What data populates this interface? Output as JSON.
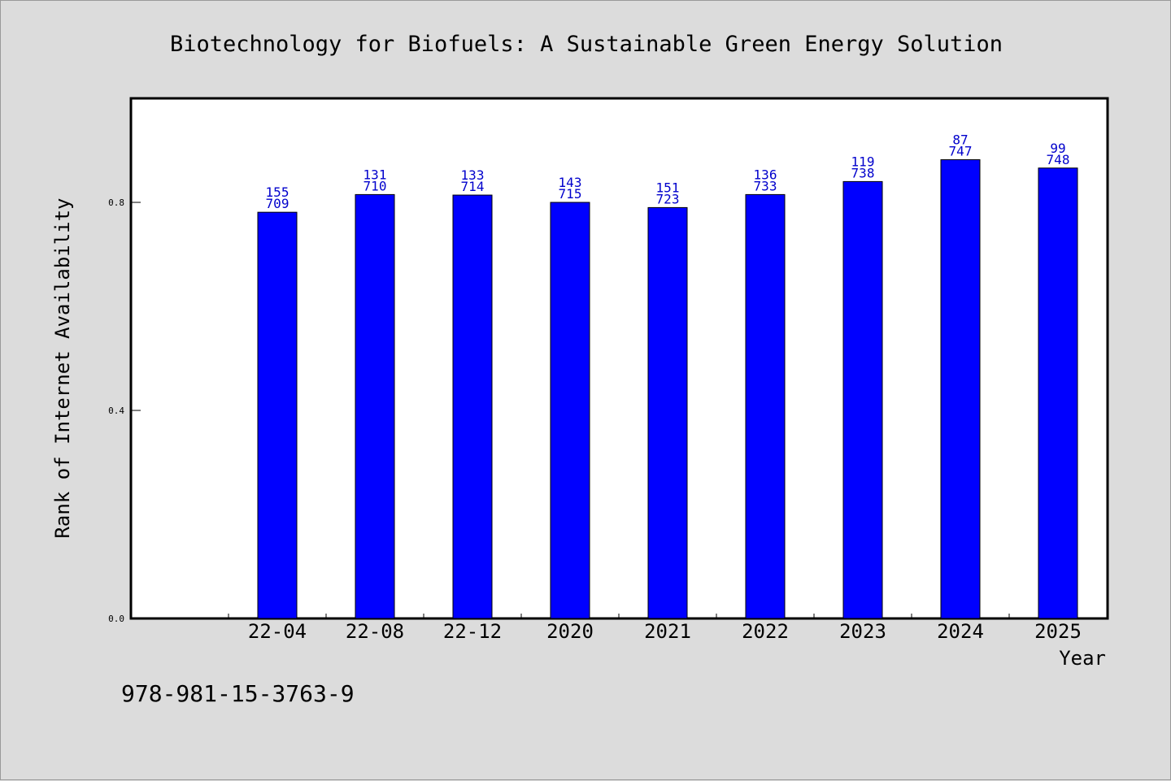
{
  "colors": {
    "background": "#dcdcdc",
    "plot_background": "#ffffff",
    "bar": "#0000ff",
    "data_label": "#0000cc",
    "axis": "#000000"
  },
  "footnote": "978-981-15-3763-9",
  "chart_data": {
    "type": "bar",
    "title": "Biotechnology for Biofuels: A Sustainable Green Energy Solution",
    "xlabel": "Year",
    "ylabel": "Rank of Internet Availability",
    "categories": [
      "22-04",
      "22-08",
      "22-12",
      "2020",
      "2021",
      "2022",
      "2023",
      "2024",
      "2025"
    ],
    "values": [
      0.781,
      0.815,
      0.814,
      0.8,
      0.79,
      0.815,
      0.84,
      0.882,
      0.866
    ],
    "label_top": [
      "155",
      "131",
      "133",
      "143",
      "151",
      "136",
      "119",
      "87",
      "99"
    ],
    "label_bottom": [
      "709",
      "710",
      "714",
      "715",
      "723",
      "733",
      "738",
      "747",
      "748"
    ],
    "ylim": [
      0.0,
      1.0
    ],
    "yticks": [
      0.0,
      0.4,
      0.8
    ],
    "ytick_labels": [
      "0.0",
      "0.4",
      "0.8"
    ],
    "grid": false,
    "legend": "none"
  }
}
